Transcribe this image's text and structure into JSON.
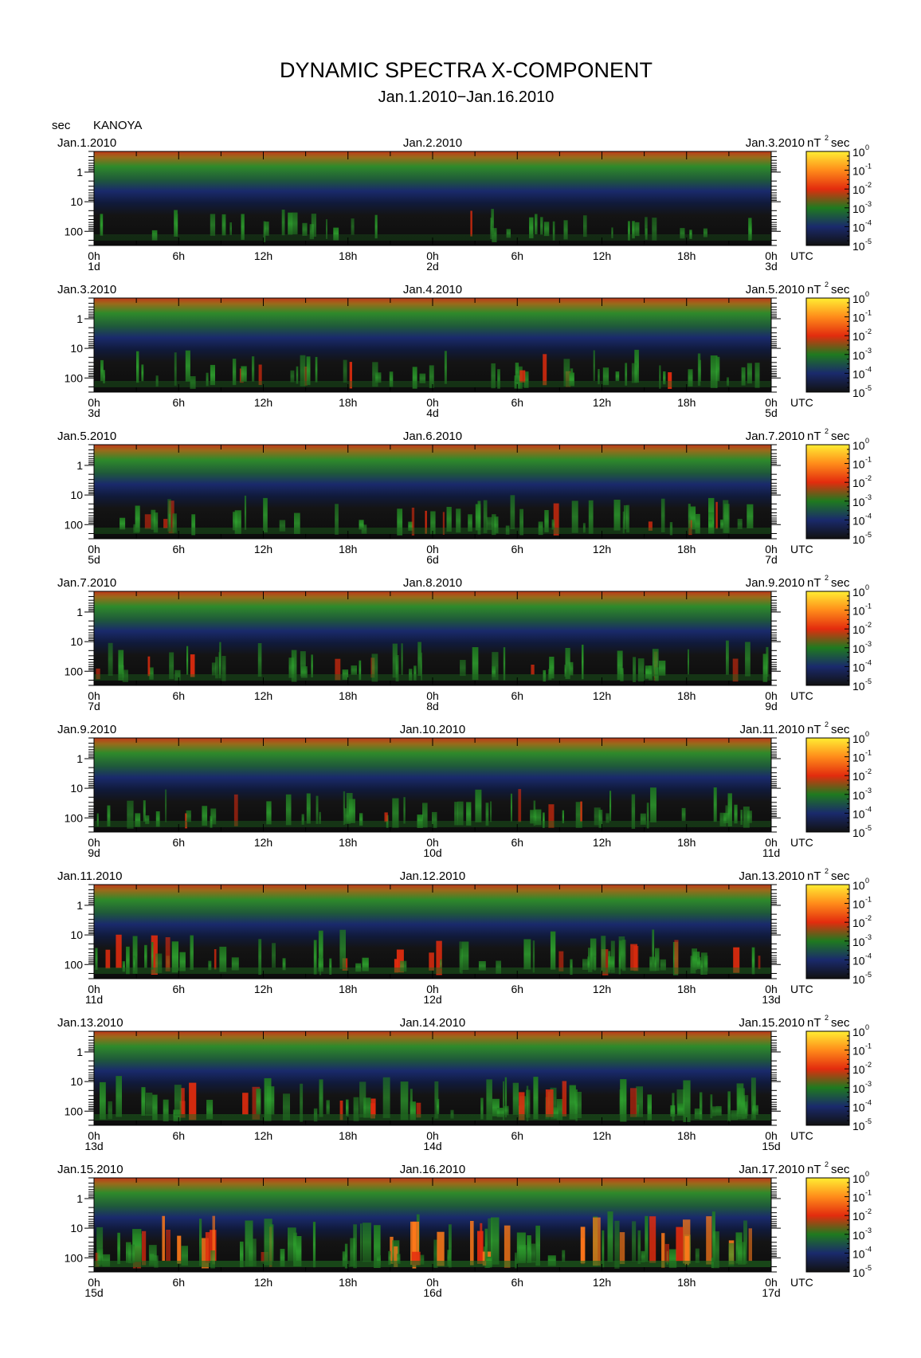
{
  "chart_data": {
    "type": "heatmap",
    "title": "DYNAMIC SPECTRA X-COMPONENT",
    "subtitle": "Jan.1.2010−Jan.16.2010",
    "station": "KANOYA",
    "ylabel": "sec",
    "y_scale": "log",
    "y_tick_labels": [
      "1",
      "10",
      "100"
    ],
    "ylim": [
      0.2,
      300
    ],
    "x_tick_labels": [
      "0h",
      "6h",
      "12h",
      "18h",
      "0h",
      "6h",
      "12h",
      "18h",
      "0h"
    ],
    "x_unit": "UTC",
    "colorbar": {
      "unit_base": "nT",
      "unit_exp": "2",
      "unit_suffix": "sec",
      "exponents": [
        "0",
        "-1",
        "-2",
        "-3",
        "-4",
        "-5"
      ],
      "scale": "log",
      "range": [
        1e-05,
        1
      ],
      "colors": [
        "#111111",
        "#1a2a6c",
        "#1f7a1f",
        "#e32c0e",
        "#ff8c1a",
        "#ffee33"
      ]
    },
    "panels": [
      {
        "start_date": "Jan.1.2010",
        "mid_date": "Jan.2.2010",
        "end_date": "Jan.3.2010",
        "day_labels": [
          "1d",
          "2d",
          "3d"
        ],
        "activity": 0.15
      },
      {
        "start_date": "Jan.3.2010",
        "mid_date": "Jan.4.2010",
        "end_date": "Jan.5.2010",
        "day_labels": [
          "3d",
          "4d",
          "5d"
        ],
        "activity": 0.35
      },
      {
        "start_date": "Jan.5.2010",
        "mid_date": "Jan.6.2010",
        "end_date": "Jan.7.2010",
        "day_labels": [
          "5d",
          "6d",
          "7d"
        ],
        "activity": 0.4
      },
      {
        "start_date": "Jan.7.2010",
        "mid_date": "Jan.8.2010",
        "end_date": "Jan.9.2010",
        "day_labels": [
          "7d",
          "8d",
          "9d"
        ],
        "activity": 0.4
      },
      {
        "start_date": "Jan.9.2010",
        "mid_date": "Jan.10.2010",
        "end_date": "Jan.11.2010",
        "day_labels": [
          "9d",
          "10d",
          "11d"
        ],
        "activity": 0.4
      },
      {
        "start_date": "Jan.11.2010",
        "mid_date": "Jan.12.2010",
        "end_date": "Jan.13.2010",
        "day_labels": [
          "11d",
          "12d",
          "13d"
        ],
        "activity": 0.55
      },
      {
        "start_date": "Jan.13.2010",
        "mid_date": "Jan.14.2010",
        "end_date": "Jan.15.2010",
        "day_labels": [
          "13d",
          "14d",
          "15d"
        ],
        "activity": 0.65
      },
      {
        "start_date": "Jan.15.2010",
        "mid_date": "Jan.16.2010",
        "end_date": "Jan.17.2010",
        "day_labels": [
          "15d",
          "16d",
          "17d"
        ],
        "activity": 0.9
      }
    ]
  }
}
